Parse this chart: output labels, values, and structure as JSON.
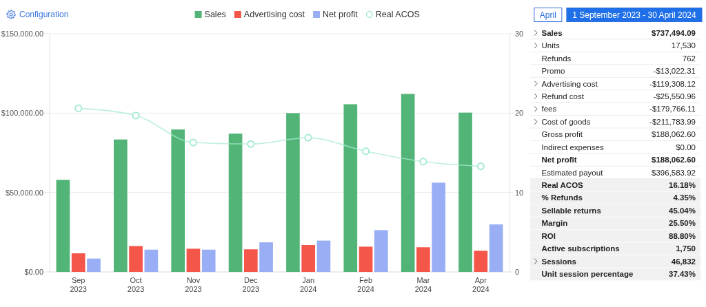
{
  "chart_data": [
    {
      "type": "bar",
      "categories": [
        "Sep 2023",
        "Oct 2023",
        "Nov 2023",
        "Dec 2023",
        "Jan 2024",
        "Feb 2024",
        "Mar 2024",
        "Apr 2024"
      ],
      "series": [
        {
          "name": "Sales",
          "color": "#52b577",
          "values": [
            58000,
            83400,
            89700,
            87100,
            100000,
            105600,
            112100,
            100300
          ]
        },
        {
          "name": "Advertising cost",
          "color": "#f5564a",
          "values": [
            11700,
            16300,
            14600,
            14200,
            16900,
            15900,
            15500,
            13300
          ]
        },
        {
          "name": "Net profit",
          "color": "#99aef5",
          "values": [
            8400,
            14000,
            14000,
            18600,
            19700,
            26300,
            56200,
            29900
          ]
        },
        {
          "name": "Real ACOS",
          "type": "line",
          "axis": "y2",
          "color": "#a6ebd2",
          "marker": "circle",
          "values": [
            20.6,
            19.7,
            16.3,
            16.1,
            16.9,
            15.2,
            13.9,
            13.3
          ]
        }
      ],
      "ylim": [
        0,
        150000
      ],
      "yticks": [
        {
          "value": 0,
          "label": "$0.00"
        },
        {
          "value": 50000,
          "label": "$50,000.00"
        },
        {
          "value": 100000,
          "label": "$100,000.00"
        },
        {
          "value": 150000,
          "label": "$150,000.00"
        }
      ],
      "y2lim": [
        0,
        30
      ],
      "y2ticks": [
        0,
        10,
        20,
        30
      ],
      "grid": "y",
      "legend": "top",
      "annotations": [
        "Configuration"
      ]
    },
    {
      "type": "other",
      "categories": [
        "Sales",
        "Units",
        "Refunds",
        "Promo",
        "Advertising cost",
        "Refund cost",
        "fees",
        "Cost of goods",
        "Gross profit",
        "Indirect expenses",
        "Net profit",
        "Estimated payout",
        "Real ACOS",
        "% Refunds",
        "Sellable returns",
        "Margin",
        "ROI",
        "Active subscriptions",
        "Sessions",
        "Unit session percentage"
      ],
      "value_labels": [
        "$737,494.09",
        "17,530",
        "762",
        "-$13,022.31",
        "-$119,308.12",
        "-$25,550.96",
        "-$179,766.11",
        "-$211,783.99",
        "$188,062.60",
        "$0.00",
        "$188,062.60",
        "$396,583.92",
        "16.18%",
        "4.35%",
        "45.04%",
        "25.50%",
        "88.80%",
        "1,750",
        "46,832",
        "37.43%"
      ],
      "annotations": [
        "April",
        "1 September 2023 - 30 April 2024"
      ]
    }
  ]
}
